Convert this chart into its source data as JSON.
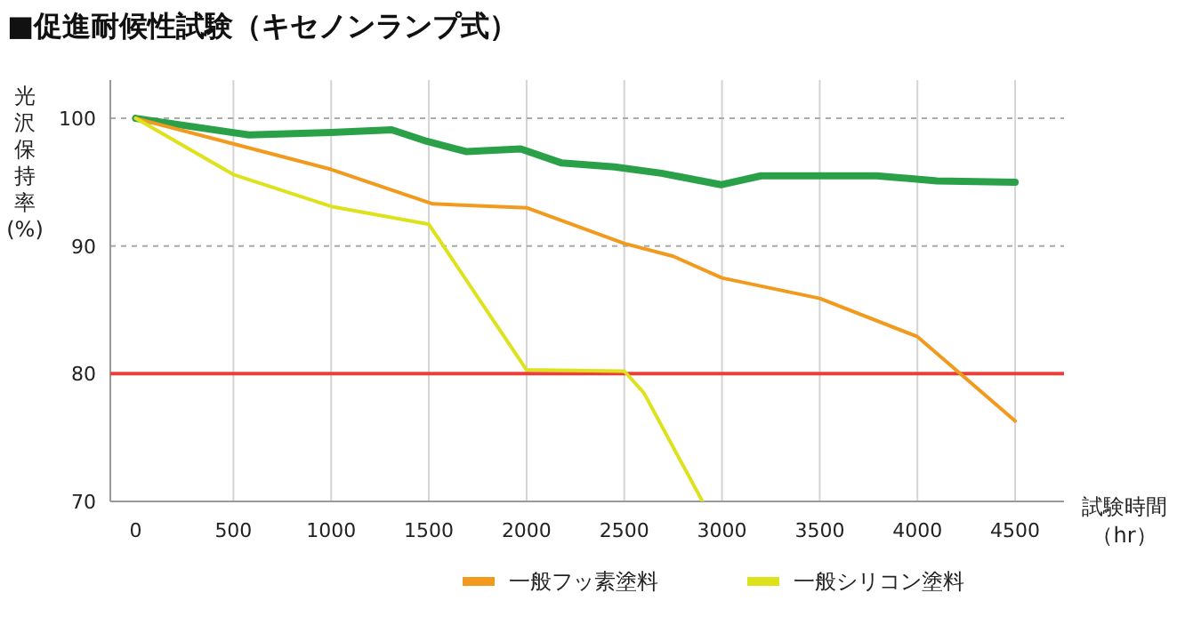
{
  "chart_data": {
    "type": "line",
    "title": "■促進耐候性試験（キセノンランプ式）",
    "xlabel": "試験時間（hr）",
    "ylabel": "光沢保持率(%)",
    "xlim": [
      -130,
      4750
    ],
    "ylim": [
      70,
      103
    ],
    "xticks": [
      0,
      500,
      1000,
      1500,
      2000,
      2500,
      3000,
      3500,
      4000,
      4500
    ],
    "yticks": [
      70,
      80,
      90,
      100
    ],
    "grid": true,
    "legend": "bottom",
    "ref_lines": [
      {
        "axis": "y",
        "value": 80,
        "color": "#e8403a"
      }
    ],
    "series": [
      {
        "color": "#2aa148",
        "x": [
          0,
          580,
          1000,
          1310,
          1490,
          1690,
          1970,
          2180,
          2450,
          2690,
          2994,
          3200,
          3490,
          3790,
          4100,
          4500
        ],
        "values": [
          100,
          98.7,
          98.9,
          99.1,
          98.2,
          97.4,
          97.6,
          96.5,
          96.2,
          95.7,
          94.8,
          95.5,
          95.5,
          95.5,
          95.1,
          95.0
        ]
      },
      {
        "name": "一般フッ素塗料",
        "color": "#f29a1e",
        "x": [
          0,
          1000,
          1520,
          2000,
          2500,
          2750,
          3000,
          3500,
          4000,
          4500
        ],
        "values": [
          100,
          96,
          93.3,
          93.0,
          90.2,
          89.2,
          87.5,
          85.9,
          82.9,
          76.3
        ]
      },
      {
        "name": "一般シリコン塗料",
        "color": "#dde21c",
        "x": [
          0,
          500,
          1000,
          1500,
          2000,
          2500,
          2600,
          2900
        ],
        "values": [
          100,
          95.6,
          93.1,
          91.7,
          80.3,
          80.2,
          78.5,
          70
        ]
      }
    ]
  }
}
